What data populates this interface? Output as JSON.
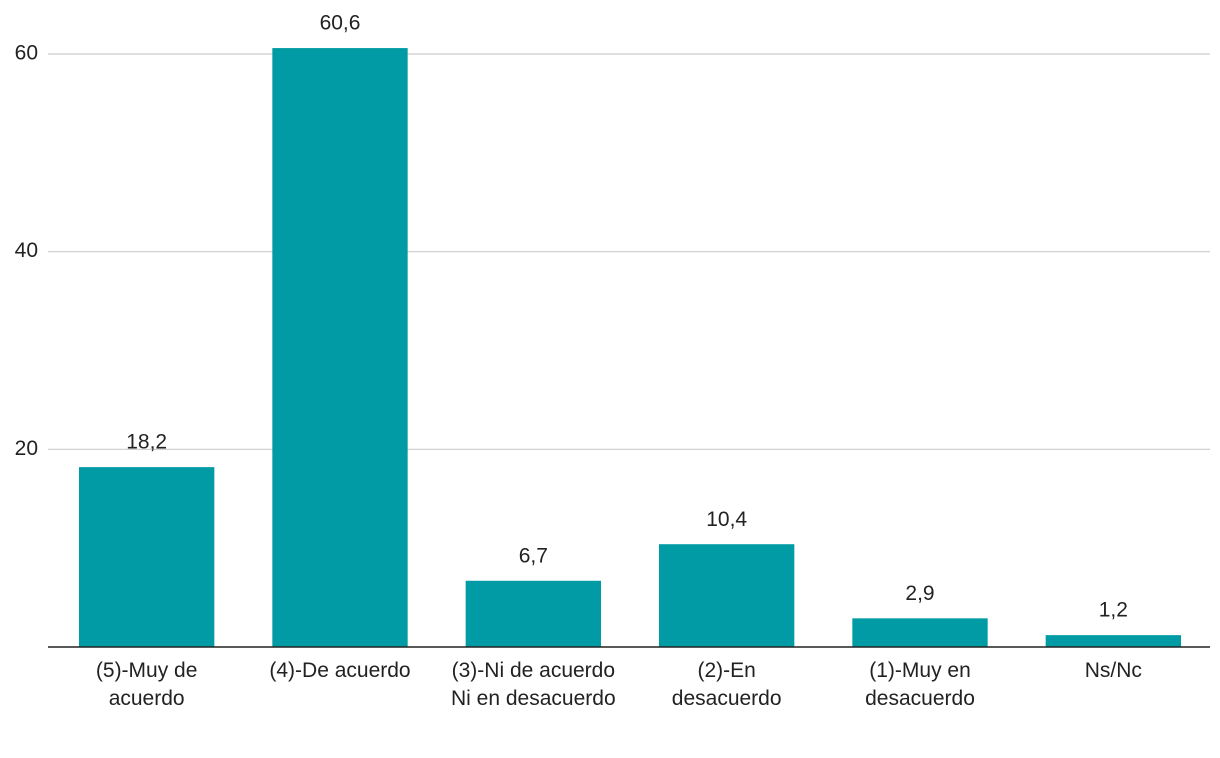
{
  "chart_data": {
    "type": "bar",
    "categories": [
      "(5)-Muy de acuerdo",
      "(4)-De acuerdo",
      "(3)-Ni de acuerdo Ni en desacuerdo",
      "(2)-En desacuerdo",
      "(1)-Muy en desacuerdo",
      "Ns/Nc"
    ],
    "values": [
      18.2,
      60.6,
      6.7,
      10.4,
      2.9,
      1.2
    ],
    "value_labels": [
      "18,2",
      "60,6",
      "6,7",
      "10,4",
      "2,9",
      "1,2"
    ],
    "color": "#009ba4",
    "ylim": [
      0,
      60
    ],
    "yticks": [
      20,
      40,
      60
    ],
    "grid": true
  }
}
